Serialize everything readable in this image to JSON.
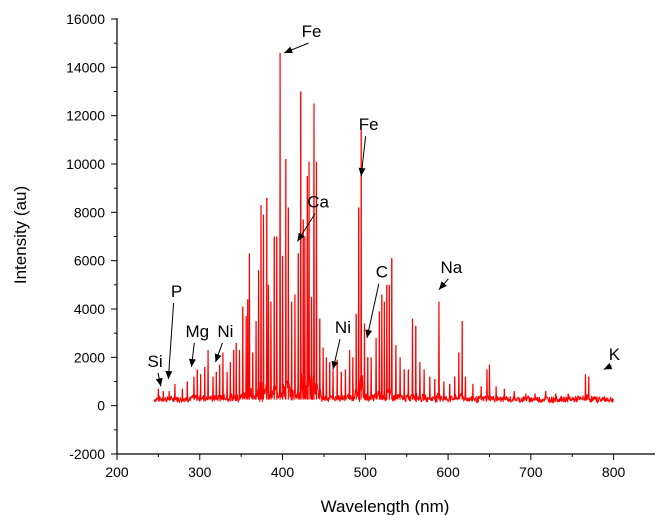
{
  "chart_data": {
    "type": "line",
    "title": "",
    "xlabel": "Wavelength (nm)",
    "ylabel": "Intensity (au)",
    "xlim": [
      200,
      850
    ],
    "ylim": [
      -2000,
      16000
    ],
    "xticks": [
      200,
      300,
      400,
      500,
      600,
      700,
      800
    ],
    "yticks": [
      -2000,
      0,
      2000,
      4000,
      6000,
      8000,
      10000,
      12000,
      14000,
      16000
    ],
    "grid": false,
    "legend": "none",
    "line_color": "#ff0000",
    "series": [
      {
        "x_range": [
          245,
          800
        ],
        "baseline": 250,
        "peaks": [
          {
            "x": 250,
            "y": 700
          },
          {
            "x": 256,
            "y": 600
          },
          {
            "x": 263,
            "y": 600
          },
          {
            "x": 270,
            "y": 900
          },
          {
            "x": 279,
            "y": 700
          },
          {
            "x": 285,
            "y": 1000
          },
          {
            "x": 293,
            "y": 1200
          },
          {
            "x": 297,
            "y": 1500
          },
          {
            "x": 301,
            "y": 1300
          },
          {
            "x": 306,
            "y": 1600
          },
          {
            "x": 310,
            "y": 2300
          },
          {
            "x": 316,
            "y": 1200
          },
          {
            "x": 320,
            "y": 1400
          },
          {
            "x": 324,
            "y": 1700
          },
          {
            "x": 328,
            "y": 2200
          },
          {
            "x": 333,
            "y": 1400
          },
          {
            "x": 337,
            "y": 1800
          },
          {
            "x": 341,
            "y": 2300
          },
          {
            "x": 344,
            "y": 2600
          },
          {
            "x": 348,
            "y": 2300
          },
          {
            "x": 352,
            "y": 4100
          },
          {
            "x": 356,
            "y": 3700
          },
          {
            "x": 358,
            "y": 4400
          },
          {
            "x": 360,
            "y": 6300
          },
          {
            "x": 364,
            "y": 2200
          },
          {
            "x": 368,
            "y": 3500
          },
          {
            "x": 371,
            "y": 5600
          },
          {
            "x": 374,
            "y": 8300
          },
          {
            "x": 377,
            "y": 7900
          },
          {
            "x": 381,
            "y": 8600
          },
          {
            "x": 383,
            "y": 5000
          },
          {
            "x": 386,
            "y": 4300
          },
          {
            "x": 390,
            "y": 7000
          },
          {
            "x": 393,
            "y": 7000
          },
          {
            "x": 397,
            "y": 14600
          },
          {
            "x": 400,
            "y": 6200
          },
          {
            "x": 404,
            "y": 10200
          },
          {
            "x": 407,
            "y": 8200
          },
          {
            "x": 411,
            "y": 4300
          },
          {
            "x": 415,
            "y": 4600
          },
          {
            "x": 419,
            "y": 6300
          },
          {
            "x": 422,
            "y": 13000
          },
          {
            "x": 425,
            "y": 7700
          },
          {
            "x": 427,
            "y": 7000
          },
          {
            "x": 430,
            "y": 9500
          },
          {
            "x": 432,
            "y": 10100
          },
          {
            "x": 435,
            "y": 4500
          },
          {
            "x": 438,
            "y": 12500
          },
          {
            "x": 441,
            "y": 10100
          },
          {
            "x": 445,
            "y": 3600
          },
          {
            "x": 449,
            "y": 2400
          },
          {
            "x": 453,
            "y": 2000
          },
          {
            "x": 457,
            "y": 1800
          },
          {
            "x": 461,
            "y": 1500
          },
          {
            "x": 466,
            "y": 1900
          },
          {
            "x": 471,
            "y": 1400
          },
          {
            "x": 476,
            "y": 1500
          },
          {
            "x": 481,
            "y": 2300
          },
          {
            "x": 485,
            "y": 2000
          },
          {
            "x": 489,
            "y": 3800
          },
          {
            "x": 492,
            "y": 8200
          },
          {
            "x": 495,
            "y": 11400
          },
          {
            "x": 499,
            "y": 3400
          },
          {
            "x": 503,
            "y": 2000
          },
          {
            "x": 507,
            "y": 2000
          },
          {
            "x": 513,
            "y": 2800
          },
          {
            "x": 517,
            "y": 3900
          },
          {
            "x": 520,
            "y": 4600
          },
          {
            "x": 523,
            "y": 4300
          },
          {
            "x": 526,
            "y": 5000
          },
          {
            "x": 529,
            "y": 5000
          },
          {
            "x": 532,
            "y": 6100
          },
          {
            "x": 537,
            "y": 2500
          },
          {
            "x": 542,
            "y": 2000
          },
          {
            "x": 547,
            "y": 1500
          },
          {
            "x": 552,
            "y": 1500
          },
          {
            "x": 557,
            "y": 3600
          },
          {
            "x": 561,
            "y": 3300
          },
          {
            "x": 566,
            "y": 1800
          },
          {
            "x": 571,
            "y": 1500
          },
          {
            "x": 578,
            "y": 1200
          },
          {
            "x": 584,
            "y": 1100
          },
          {
            "x": 589,
            "y": 4300
          },
          {
            "x": 595,
            "y": 1000
          },
          {
            "x": 602,
            "y": 900
          },
          {
            "x": 608,
            "y": 1200
          },
          {
            "x": 613,
            "y": 2200
          },
          {
            "x": 617,
            "y": 3500
          },
          {
            "x": 621,
            "y": 1200
          },
          {
            "x": 630,
            "y": 900
          },
          {
            "x": 640,
            "y": 800
          },
          {
            "x": 647,
            "y": 1500
          },
          {
            "x": 650,
            "y": 1700
          },
          {
            "x": 658,
            "y": 800
          },
          {
            "x": 668,
            "y": 700
          },
          {
            "x": 680,
            "y": 600
          },
          {
            "x": 694,
            "y": 500
          },
          {
            "x": 705,
            "y": 500
          },
          {
            "x": 718,
            "y": 600
          },
          {
            "x": 730,
            "y": 500
          },
          {
            "x": 745,
            "y": 500
          },
          {
            "x": 757,
            "y": 400
          },
          {
            "x": 766,
            "y": 1300
          },
          {
            "x": 770,
            "y": 1200
          },
          {
            "x": 778,
            "y": 300
          },
          {
            "x": 790,
            "y": 300
          }
        ]
      }
    ],
    "annotations": [
      {
        "label": "Fe",
        "label_x": 435,
        "label_y": 15250,
        "arrow_to_x": 402,
        "arrow_to_y": 14600
      },
      {
        "label": "Fe",
        "label_x": 504,
        "label_y": 11400,
        "arrow_to_x": 495,
        "arrow_to_y": 9500
      },
      {
        "label": "Ca",
        "label_x": 443,
        "label_y": 8200,
        "arrow_to_x": 418,
        "arrow_to_y": 6800
      },
      {
        "label": "Na",
        "label_x": 604,
        "label_y": 5500,
        "arrow_to_x": 589,
        "arrow_to_y": 4800
      },
      {
        "label": "C",
        "label_x": 520,
        "label_y": 5300,
        "arrow_to_x": 502,
        "arrow_to_y": 2800
      },
      {
        "label": "P",
        "label_x": 272,
        "label_y": 4500,
        "arrow_to_x": 262,
        "arrow_to_y": 1100
      },
      {
        "label": "Mg",
        "label_x": 297,
        "label_y": 2850,
        "arrow_to_x": 290,
        "arrow_to_y": 1600
      },
      {
        "label": "Ni",
        "label_x": 331,
        "label_y": 2850,
        "arrow_to_x": 319,
        "arrow_to_y": 1800
      },
      {
        "label": "Ni",
        "label_x": 473,
        "label_y": 3000,
        "arrow_to_x": 461,
        "arrow_to_y": 1500
      },
      {
        "label": "Si",
        "label_x": 246,
        "label_y": 1600,
        "arrow_to_x": 253,
        "arrow_to_y": 800
      },
      {
        "label": "K",
        "label_x": 801,
        "label_y": 1900,
        "arrow_to_x": 788,
        "arrow_to_y": 1500
      }
    ]
  }
}
